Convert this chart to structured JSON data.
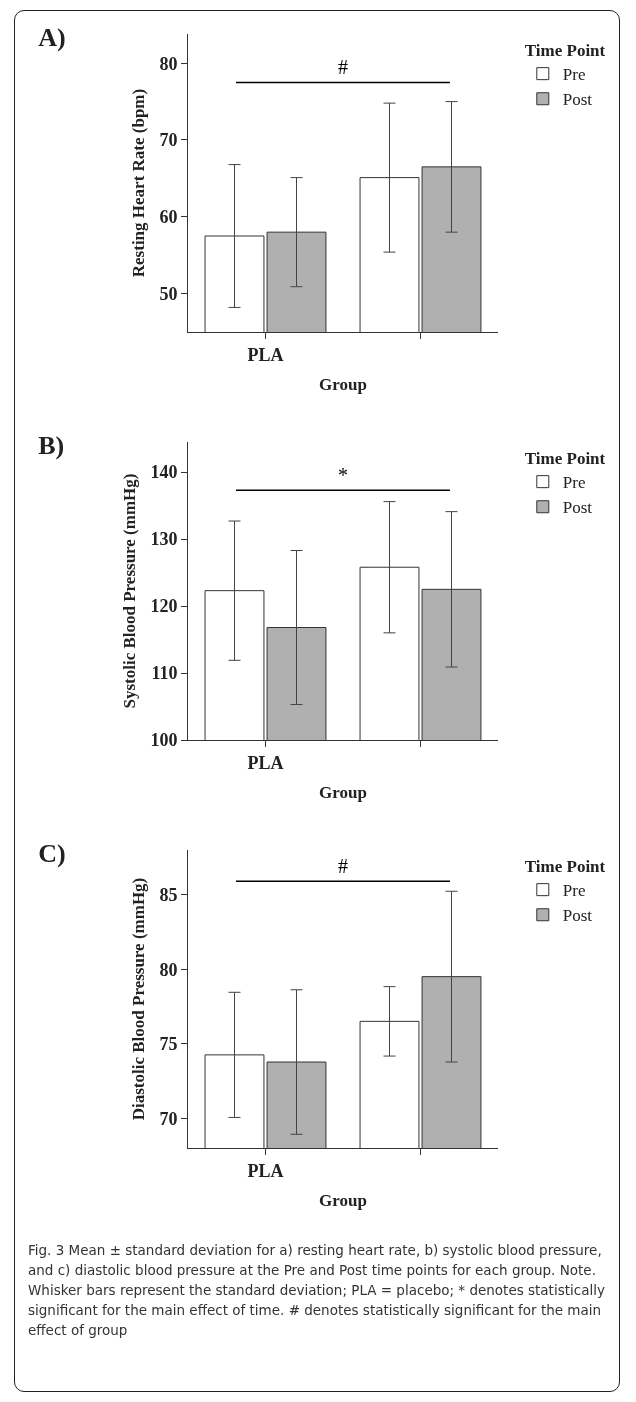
{
  "chart_data": [
    {
      "type": "bar",
      "title": "A)",
      "xlabel": "Group",
      "ylabel": "Resting Heart Rate (bpm)",
      "legend_title": "Time Point",
      "legend": "top right",
      "categories": [
        "PLA",
        null
      ],
      "ylim": [
        45,
        83.8
      ],
      "yticks": [
        50,
        60,
        70,
        80
      ],
      "ref_lines": [
        {
          "axis": "y",
          "value": 77.5,
          "label": "#",
          "color": "#000000"
        }
      ],
      "series": [
        {
          "name": "Pre",
          "color": "#ffffff",
          "values": [
            57.5,
            65.1
          ],
          "errors": [
            9.3,
            9.7
          ]
        },
        {
          "name": "Post",
          "color": "#b0b0b0",
          "values": [
            58.0,
            66.5
          ],
          "errors": [
            7.1,
            8.5
          ]
        }
      ]
    },
    {
      "type": "bar",
      "title": "B)",
      "xlabel": "Group",
      "ylabel": "Systolic Blood Pressure (mmHg)",
      "legend_title": "Time Point",
      "legend": "top right",
      "categories": [
        "PLA",
        null
      ],
      "ylim": [
        100,
        144.5
      ],
      "yticks": [
        100,
        110,
        120,
        130,
        140
      ],
      "ref_lines": [
        {
          "axis": "y",
          "value": 137.3,
          "label": "*",
          "color": "#000000"
        }
      ],
      "series": [
        {
          "name": "Pre",
          "color": "#ffffff",
          "values": [
            122.3,
            125.8
          ],
          "errors": [
            10.4,
            9.8
          ]
        },
        {
          "name": "Post",
          "color": "#b0b0b0",
          "values": [
            116.8,
            122.5
          ],
          "errors": [
            11.5,
            11.6
          ]
        }
      ]
    },
    {
      "type": "bar",
      "title": "C)",
      "xlabel": "Group",
      "ylabel": "Diastolic Blood Pressure (mmHg)",
      "legend_title": "Time Point",
      "legend": "top right",
      "categories": [
        "PLA",
        null
      ],
      "ylim": [
        68,
        88
      ],
      "yticks": [
        70,
        75,
        80,
        85
      ],
      "ref_lines": [
        {
          "axis": "y",
          "value": 85.9,
          "label": "#",
          "color": "#000000"
        }
      ],
      "annotations": [
        "Fig. 3 Mean ± standard deviation for a) resting heart rate, b) systolic blood pressure, and c) diastolic blood pressure at the Pre and Post time points for each group. Note. Whisker bars represent the standard deviation; PLA = placebo; * denotes statistically significant for the main effect of time. # denotes statistically significant for the main effect of group"
      ],
      "series": [
        {
          "name": "Pre",
          "color": "#ffffff",
          "values": [
            74.25,
            76.5
          ],
          "errors": [
            4.2,
            2.33
          ]
        },
        {
          "name": "Post",
          "color": "#b0b0b0",
          "values": [
            73.77,
            79.5
          ],
          "errors": [
            4.85,
            5.73
          ]
        }
      ]
    }
  ]
}
